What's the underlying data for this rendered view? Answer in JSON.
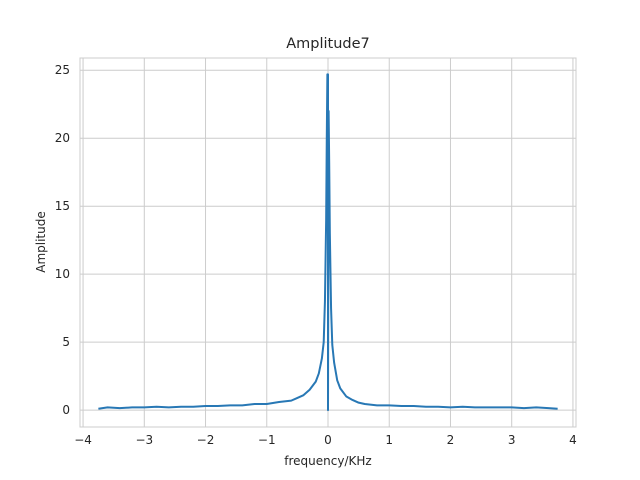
{
  "chart_data": {
    "type": "line",
    "title": "Amplitude7",
    "xlabel": "frequency/KHz",
    "ylabel": "Amplitude",
    "xlim": [
      -4.05,
      4.05
    ],
    "ylim": [
      -1.24,
      25.9
    ],
    "xticks": [
      -4,
      -3,
      -2,
      -1,
      0,
      1,
      2,
      3,
      4
    ],
    "xtick_labels": [
      "−4",
      "−3",
      "−2",
      "−1",
      "0",
      "1",
      "2",
      "3",
      "4"
    ],
    "yticks": [
      0,
      5,
      10,
      15,
      20,
      25
    ],
    "ytick_labels": [
      "0",
      "5",
      "10",
      "15",
      "20",
      "25"
    ],
    "grid": true,
    "line_color": "#2878b5",
    "series": [
      {
        "values_note": "",
        "x": [
          -3.75,
          -3.6,
          -3.4,
          -3.2,
          -3.0,
          -2.8,
          -2.6,
          -2.4,
          -2.2,
          -2.0,
          -1.8,
          -1.6,
          -1.4,
          -1.2,
          -1.0,
          -0.8,
          -0.6,
          -0.5,
          -0.4,
          -0.3,
          -0.2,
          -0.15,
          -0.1,
          -0.07,
          -0.05,
          -0.03,
          -0.02,
          -0.01,
          0.0,
          0.0,
          0.01,
          0.02,
          0.03,
          0.05,
          0.07,
          0.1,
          0.15,
          0.2,
          0.3,
          0.4,
          0.5,
          0.6,
          0.8,
          1.0,
          1.2,
          1.4,
          1.6,
          1.8,
          2.0,
          2.2,
          2.4,
          2.6,
          2.8,
          3.0,
          3.2,
          3.4,
          3.6,
          3.75
        ],
        "y": [
          0.1,
          0.2,
          0.15,
          0.2,
          0.2,
          0.25,
          0.2,
          0.25,
          0.25,
          0.3,
          0.3,
          0.35,
          0.35,
          0.45,
          0.45,
          0.6,
          0.7,
          0.9,
          1.1,
          1.5,
          2.1,
          2.7,
          3.8,
          5.0,
          8.0,
          14.0,
          20.0,
          24.7,
          24.7,
          0.0,
          22.0,
          18.0,
          13.0,
          7.5,
          4.8,
          3.5,
          2.2,
          1.6,
          1.0,
          0.75,
          0.55,
          0.45,
          0.35,
          0.35,
          0.3,
          0.3,
          0.25,
          0.25,
          0.2,
          0.25,
          0.2,
          0.2,
          0.2,
          0.2,
          0.15,
          0.2,
          0.15,
          0.1
        ]
      }
    ]
  }
}
